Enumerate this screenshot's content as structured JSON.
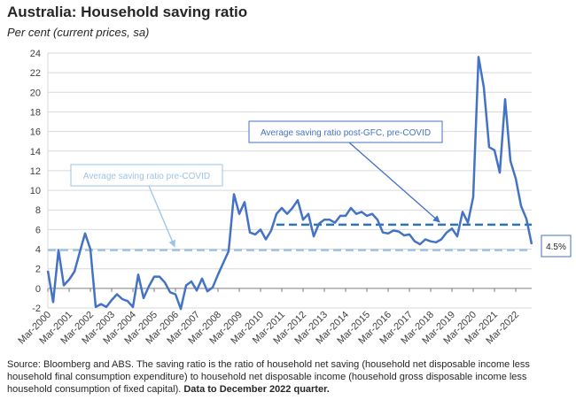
{
  "chart_data": {
    "type": "line",
    "title": "Australia: Household saving ratio",
    "subtitle": "Per cent (current prices, sa)",
    "xlabel": "",
    "ylabel": "",
    "ylim": [
      -2,
      24
    ],
    "y_ticks": [
      -2,
      0,
      2,
      4,
      6,
      8,
      10,
      12,
      14,
      16,
      18,
      20,
      22,
      24
    ],
    "x_tick_labels": [
      "Mar-2000",
      "Mar-2001",
      "Mar-2002",
      "Mar-2003",
      "Mar-2004",
      "Mar-2005",
      "Mar-2006",
      "Mar-2007",
      "Mar-2008",
      "Mar-2009",
      "Mar-2010",
      "Mar-2011",
      "Mar-2012",
      "Mar-2013",
      "Mar-2014",
      "Mar-2015",
      "Mar-2016",
      "Mar-2017",
      "Mar-2018",
      "Mar-2019",
      "Mar-2020",
      "Mar-2021",
      "Mar-2022"
    ],
    "grid": true,
    "series": [
      {
        "name": "Household saving ratio",
        "color": "#4472C4",
        "start": "Mar-2000",
        "frequency": "quarterly",
        "values": [
          1.8,
          -1.4,
          3.9,
          0.3,
          0.9,
          1.7,
          3.7,
          5.6,
          4.0,
          -1.9,
          -1.6,
          -1.9,
          -1.2,
          -0.6,
          -1.1,
          -1.3,
          -1.9,
          1.4,
          -1.0,
          0.2,
          1.2,
          1.2,
          0.6,
          -0.4,
          -0.6,
          -2.1,
          0.3,
          0.7,
          -0.2,
          1.0,
          -0.3,
          0.1,
          1.4,
          2.6,
          3.8,
          9.6,
          7.6,
          8.8,
          5.7,
          5.5,
          6.0,
          5.0,
          5.9,
          7.6,
          8.2,
          7.6,
          8.2,
          9.0,
          7.0,
          7.6,
          5.3,
          6.6,
          7.0,
          7.0,
          6.7,
          7.4,
          7.4,
          8.2,
          7.6,
          7.8,
          7.4,
          7.6,
          7.0,
          5.7,
          5.6,
          5.9,
          5.8,
          5.4,
          5.5,
          4.8,
          4.5,
          5.0,
          4.8,
          4.7,
          5.0,
          5.7,
          6.1,
          5.3,
          7.8,
          6.7,
          9.3,
          23.6,
          20.5,
          14.4,
          14.1,
          11.8,
          19.3,
          13.0,
          11.2,
          8.4,
          7.1,
          4.5
        ]
      },
      {
        "name": "Average saving ratio pre-COVID",
        "color": "#9DC3E6",
        "value": 3.9
      },
      {
        "name": "Average saving ratio post-GFC, pre-COVID",
        "color": "#2E75B6",
        "value": 6.5
      }
    ],
    "annotations": [
      {
        "id": "pre_covid",
        "text": "Average saving ratio pre-COVID",
        "color": "#9DC3E6"
      },
      {
        "id": "post_gfc",
        "text": "Average saving ratio post-GFC, pre-COVID",
        "color": "#4472C4"
      },
      {
        "id": "last_value",
        "text": "4.5%",
        "color": "#4472C4"
      }
    ]
  },
  "source": {
    "text": "Source: Bloomberg and ABS.  The saving ratio is the ratio of household net saving (household net disposable income less household final consumption expenditure) to household net disposable income (household gross disposable income less household consumption of fixed capital).",
    "bold_note": "Data to December 2022 quarter."
  }
}
